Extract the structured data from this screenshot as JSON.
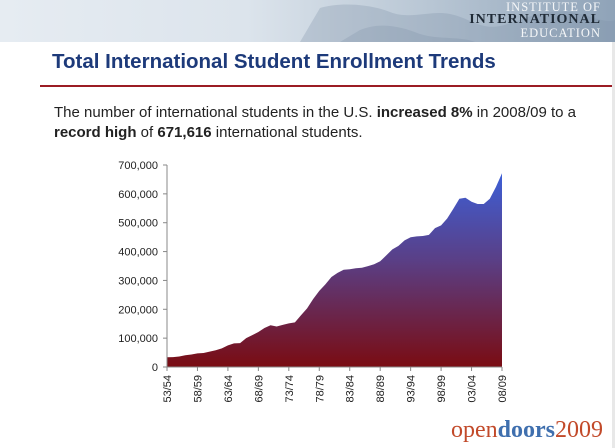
{
  "header": {
    "logo_line1": "INSTITUTE OF",
    "logo_line2": "INTERNATIONAL",
    "logo_line3": "EDUCATION"
  },
  "title": "Total International Student Enrollment Trends",
  "intro": {
    "p1": "The number of international students in the U.S. ",
    "b1": "increased 8%",
    "p2": " in 2008/09 to a ",
    "b2": "record high",
    "p3": " of ",
    "b3": "671,616",
    "p4": " international students."
  },
  "footer": {
    "part1": "open",
    "part2": "doors",
    "part3": "2009"
  },
  "colors": {
    "title": "#1d3a7a",
    "rule": "#9b1c24",
    "area_top": "#3d5fd6",
    "area_bottom": "#7a0c12"
  },
  "chart_data": {
    "type": "area",
    "title": "",
    "xlabel": "",
    "ylabel": "",
    "ylim": [
      0,
      700000
    ],
    "yticks": [
      0,
      100000,
      200000,
      300000,
      400000,
      500000,
      600000,
      700000
    ],
    "ytick_labels": [
      "0",
      "100,000",
      "200,000",
      "300,000",
      "400,000",
      "500,000",
      "600,000",
      "700,000"
    ],
    "xtick_labels": [
      "53/54",
      "58/59",
      "63/64",
      "68/69",
      "73/74",
      "78/79",
      "83/84",
      "88/89",
      "93/94",
      "98/99",
      "03/04",
      "08/09"
    ],
    "xtick_years": [
      1953,
      1958,
      1963,
      1968,
      1973,
      1978,
      1983,
      1988,
      1993,
      1998,
      2003,
      2008
    ],
    "x": [
      1953,
      1954,
      1955,
      1956,
      1957,
      1958,
      1959,
      1960,
      1961,
      1962,
      1963,
      1964,
      1965,
      1966,
      1967,
      1968,
      1969,
      1970,
      1971,
      1972,
      1973,
      1974,
      1975,
      1976,
      1977,
      1978,
      1979,
      1980,
      1981,
      1982,
      1983,
      1984,
      1985,
      1986,
      1987,
      1988,
      1989,
      1990,
      1991,
      1992,
      1993,
      1994,
      1995,
      1996,
      1997,
      1998,
      1999,
      2000,
      2001,
      2002,
      2003,
      2004,
      2005,
      2006,
      2007,
      2008
    ],
    "values": [
      33833,
      34232,
      36494,
      40666,
      43391,
      47245,
      48486,
      53107,
      58086,
      64705,
      74814,
      82045,
      82709,
      100262,
      110315,
      121362,
      134959,
      144708,
      140126,
      146097,
      151066,
      154580,
      179344,
      203068,
      235509,
      263938,
      286343,
      311882,
      326299,
      336985,
      338894,
      342113,
      343777,
      349609,
      356187,
      366354,
      386851,
      407529,
      419585,
      438618,
      449749,
      452635,
      453787,
      457984,
      481280,
      490933,
      514723,
      547867,
      582996,
      586323,
      572509,
      565039,
      564766,
      582984,
      623805,
      671616
    ],
    "grid": false,
    "legend": "none"
  }
}
